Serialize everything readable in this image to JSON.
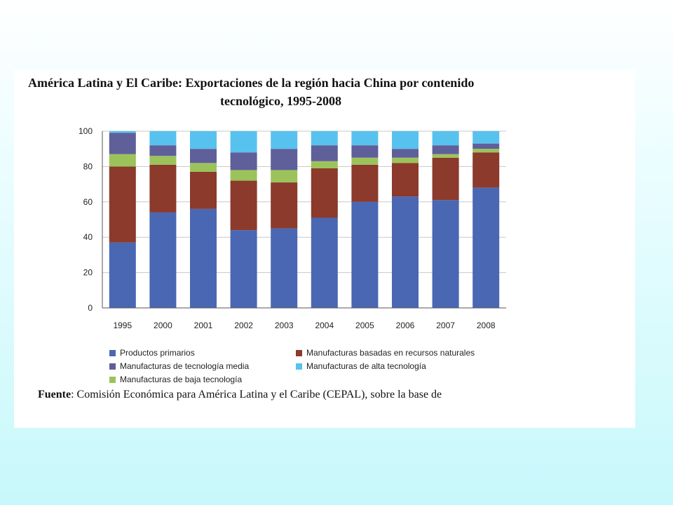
{
  "page": {
    "title_line1": "América Latina y El Caribe: Exportaciones de la región hacia China por contenido",
    "title_line2": "tecnológico, 1995-2008",
    "source_label": "Fuente",
    "source_text": ": Comisión Económica para América Latina y el Caribe (CEPAL), sobre la base de"
  },
  "chart_data": {
    "type": "bar",
    "stacked": true,
    "title": "América Latina y El Caribe: Exportaciones de la región hacia China por contenido tecnológico, 1995-2008",
    "categories": [
      "1995",
      "2000",
      "2001",
      "2002",
      "2003",
      "2004",
      "2005",
      "2006",
      "2007",
      "2008"
    ],
    "ylim": [
      0,
      100
    ],
    "yticks": [
      0,
      20,
      40,
      60,
      80,
      100
    ],
    "grid": true,
    "legend_position": "bottom",
    "series": [
      {
        "name": "Productos primarios",
        "color": "#4a67b3",
        "values": [
          37,
          54,
          56,
          44,
          45,
          51,
          60,
          63,
          61,
          68
        ]
      },
      {
        "name": "Manufacturas basadas en recursos naturales",
        "color": "#8b3a2c",
        "values": [
          43,
          27,
          21,
          28,
          26,
          28,
          21,
          19,
          24,
          20
        ]
      },
      {
        "name": "Manufacturas de baja tecnología",
        "color": "#9cc35b",
        "values": [
          7,
          5,
          5,
          6,
          7,
          4,
          4,
          3,
          2,
          2
        ]
      },
      {
        "name": "Manufacturas de tecnología media",
        "color": "#5f5f9a",
        "values": [
          12,
          6,
          8,
          10,
          12,
          9,
          7,
          5,
          5,
          3
        ]
      },
      {
        "name": "Manufacturas de alta tecnología",
        "color": "#58c2ee",
        "values": [
          1,
          8,
          10,
          12,
          10,
          8,
          8,
          10,
          8,
          7
        ]
      }
    ]
  }
}
